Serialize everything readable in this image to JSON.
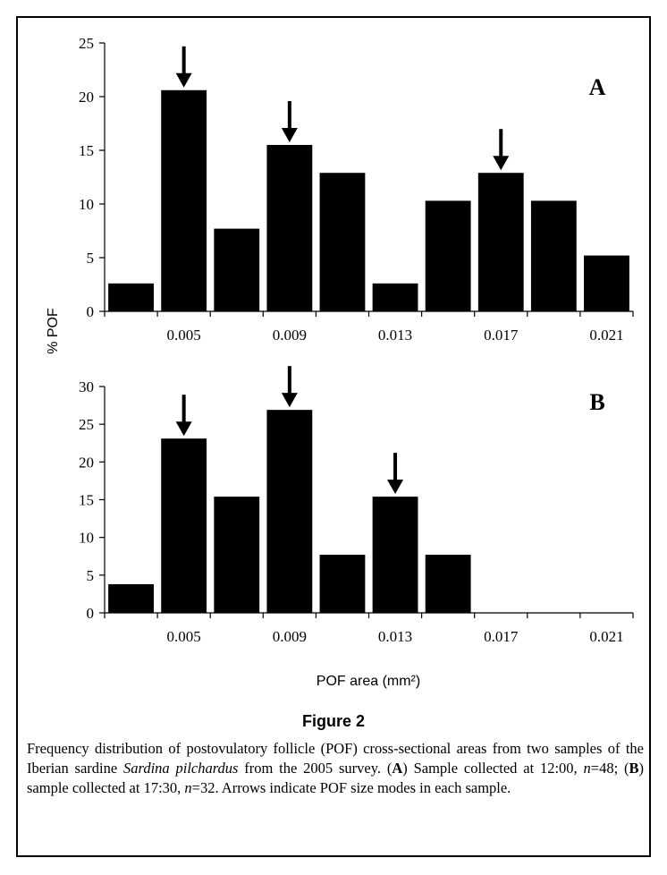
{
  "figure": {
    "title": "Figure 2",
    "caption": [
      {
        "t": "Frequency distribution of postovulatory follicle (POF) cross-sectional areas from two samples of the Iberian sardine ",
        "s": "n"
      },
      {
        "t": "Sardina pilchardus",
        "s": "i"
      },
      {
        "t": " from the 2005 survey. (",
        "s": "n"
      },
      {
        "t": "A",
        "s": "b"
      },
      {
        "t": ") Sample collected at 12:00, ",
        "s": "n"
      },
      {
        "t": "n",
        "s": "i"
      },
      {
        "t": "=48; (",
        "s": "n"
      },
      {
        "t": "B",
        "s": "b"
      },
      {
        "t": ") sample collected at 17:30, ",
        "s": "n"
      },
      {
        "t": "n",
        "s": "i"
      },
      {
        "t": "=32. Arrows indicate POF size modes in each sample.",
        "s": "n"
      }
    ]
  },
  "chart_data": [
    {
      "type": "bar",
      "panel": "A",
      "categories": [
        "0.003",
        "0.005",
        "0.007",
        "0.009",
        "0.011",
        "0.013",
        "0.015",
        "0.017",
        "0.019",
        "0.021"
      ],
      "x_tick_labels": [
        "0.005",
        "0.009",
        "0.013",
        "0.017",
        "0.021"
      ],
      "values": [
        2.6,
        20.6,
        7.7,
        15.5,
        12.9,
        2.6,
        10.3,
        12.9,
        10.3,
        5.2
      ],
      "ylim": [
        0,
        25
      ],
      "y_ticks": [
        0,
        5,
        10,
        15,
        20,
        25
      ],
      "mode_arrows": [
        1,
        3,
        7
      ],
      "xlabel": "",
      "ylabel": "% POF",
      "grid": false,
      "bar_color": "#000000"
    },
    {
      "type": "bar",
      "panel": "B",
      "categories": [
        "0.003",
        "0.005",
        "0.007",
        "0.009",
        "0.011",
        "0.013",
        "0.015",
        "0.017",
        "0.019",
        "0.021"
      ],
      "x_tick_labels": [
        "0.005",
        "0.009",
        "0.013",
        "0.017",
        "0.021"
      ],
      "values": [
        3.8,
        23.1,
        15.4,
        26.9,
        7.7,
        15.4,
        7.7,
        0,
        0,
        0
      ],
      "ylim": [
        0,
        30
      ],
      "y_ticks": [
        0,
        5,
        10,
        15,
        20,
        25,
        30
      ],
      "mode_arrows": [
        1,
        3,
        5
      ],
      "xlabel": "POF area (mm²)",
      "ylabel": "% POF",
      "grid": false,
      "bar_color": "#000000"
    }
  ]
}
